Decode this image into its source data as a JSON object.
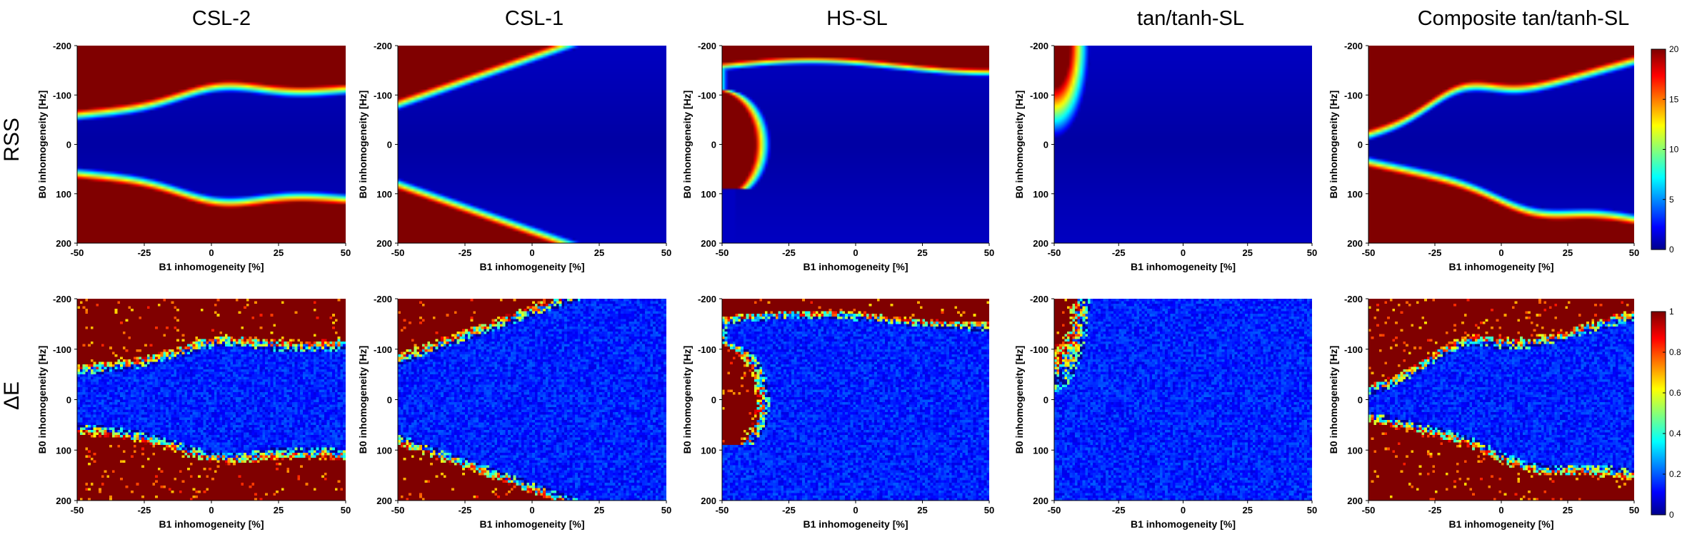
{
  "figure": {
    "columns": [
      "CSL-2",
      "CSL-1",
      "HS-SL",
      "tan/tanh-SL",
      "Composite tan/tanh-SL"
    ],
    "rows": [
      "RSS",
      "ΔE"
    ]
  },
  "colors": {
    "colormap": "jet",
    "stops": [
      "#00008f",
      "#0000ff",
      "#00ffff",
      "#ffff00",
      "#ff0000",
      "#800000"
    ]
  },
  "chart_data": [
    {
      "type": "heatmap",
      "row": "RSS",
      "title": "CSL-2",
      "xlabel": "B1 inhomogeneity [%]",
      "ylabel": "B0 inhomogeneity [Hz]",
      "xlim": [
        -50,
        50
      ],
      "ylim": [
        -200,
        200
      ],
      "xticks": [
        "-50",
        "-25",
        "0",
        "25",
        "50"
      ],
      "yticks": [
        "-200",
        "-100",
        "0",
        "100",
        "200"
      ],
      "clim": [
        0,
        20
      ],
      "model": "csl2",
      "noise": false
    },
    {
      "type": "heatmap",
      "row": "RSS",
      "title": "CSL-1",
      "xlabel": "B1 inhomogeneity [%]",
      "ylabel": "B0 inhomogeneity [Hz]",
      "xlim": [
        -50,
        50
      ],
      "ylim": [
        -200,
        200
      ],
      "xticks": [
        "-50",
        "-25",
        "0",
        "25",
        "50"
      ],
      "yticks": [
        "-200",
        "-100",
        "0",
        "100",
        "200"
      ],
      "clim": [
        0,
        20
      ],
      "model": "csl1",
      "noise": false
    },
    {
      "type": "heatmap",
      "row": "RSS",
      "title": "HS-SL",
      "xlabel": "B1 inhomogeneity [%]",
      "ylabel": "B0 inhomogeneity [Hz]",
      "xlim": [
        -50,
        50
      ],
      "ylim": [
        -200,
        200
      ],
      "xticks": [
        "-50",
        "-25",
        "0",
        "25",
        "50"
      ],
      "yticks": [
        "-200",
        "-100",
        "0",
        "100",
        "200"
      ],
      "clim": [
        0,
        20
      ],
      "model": "hssl",
      "noise": false
    },
    {
      "type": "heatmap",
      "row": "RSS",
      "title": "tan/tanh-SL",
      "xlabel": "B1 inhomogeneity [%]",
      "ylabel": "B0 inhomogeneity [Hz]",
      "xlim": [
        -50,
        50
      ],
      "ylim": [
        -200,
        200
      ],
      "xticks": [
        "-50",
        "-25",
        "0",
        "25",
        "50"
      ],
      "yticks": [
        "-200",
        "-100",
        "0",
        "100",
        "200"
      ],
      "clim": [
        0,
        20
      ],
      "model": "tan",
      "noise": false
    },
    {
      "type": "heatmap",
      "row": "RSS",
      "title": "Composite tan/tanh-SL",
      "xlabel": "B1 inhomogeneity [%]",
      "ylabel": "B0 inhomogeneity [Hz]",
      "xlim": [
        -50,
        50
      ],
      "ylim": [
        -200,
        200
      ],
      "xticks": [
        "-50",
        "-25",
        "0",
        "25",
        "50"
      ],
      "yticks": [
        "-200",
        "-100",
        "0",
        "100",
        "200"
      ],
      "clim": [
        0,
        20
      ],
      "model": "comp",
      "noise": false,
      "colorbar": {
        "ticks": [
          0,
          5,
          10,
          15,
          20
        ],
        "labels": [
          "0",
          "5",
          "10",
          "15",
          "20"
        ]
      }
    },
    {
      "type": "heatmap",
      "row": "ΔE",
      "title": "CSL-2",
      "xlabel": "B1 inhomogeneity [%]",
      "ylabel": "B0 inhomogeneity [Hz]",
      "xlim": [
        -50,
        50
      ],
      "ylim": [
        -200,
        200
      ],
      "xticks": [
        "-50",
        "-25",
        "0",
        "25",
        "50"
      ],
      "yticks": [
        "-200",
        "-100",
        "0",
        "100",
        "200"
      ],
      "clim": [
        0,
        1
      ],
      "model": "csl2",
      "noise": true
    },
    {
      "type": "heatmap",
      "row": "ΔE",
      "title": "CSL-1",
      "xlabel": "B1 inhomogeneity [%]",
      "ylabel": "B0 inhomogeneity [Hz]",
      "xlim": [
        -50,
        50
      ],
      "ylim": [
        -200,
        200
      ],
      "xticks": [
        "-50",
        "-25",
        "0",
        "25",
        "50"
      ],
      "yticks": [
        "-200",
        "-100",
        "0",
        "100",
        "200"
      ],
      "clim": [
        0,
        1
      ],
      "model": "csl1",
      "noise": true
    },
    {
      "type": "heatmap",
      "row": "ΔE",
      "title": "HS-SL",
      "xlabel": "B1 inhomogeneity [%]",
      "ylabel": "B0 inhomogeneity [Hz]",
      "xlim": [
        -50,
        50
      ],
      "ylim": [
        -200,
        200
      ],
      "xticks": [
        "-50",
        "-25",
        "0",
        "25",
        "50"
      ],
      "yticks": [
        "-200",
        "-100",
        "0",
        "100",
        "200"
      ],
      "clim": [
        0,
        1
      ],
      "model": "hssl",
      "noise": true
    },
    {
      "type": "heatmap",
      "row": "ΔE",
      "title": "tan/tanh-SL",
      "xlabel": "B1 inhomogeneity [%]",
      "ylabel": "B0 inhomogeneity [Hz]",
      "xlim": [
        -50,
        50
      ],
      "ylim": [
        -200,
        200
      ],
      "xticks": [
        "-50",
        "-25",
        "0",
        "25",
        "50"
      ],
      "yticks": [
        "-200",
        "-100",
        "0",
        "100",
        "200"
      ],
      "clim": [
        0,
        1
      ],
      "model": "tan",
      "noise": true
    },
    {
      "type": "heatmap",
      "row": "ΔE",
      "title": "Composite tan/tanh-SL",
      "xlabel": "B1 inhomogeneity [%]",
      "ylabel": "B0 inhomogeneity [Hz]",
      "xlim": [
        -50,
        50
      ],
      "ylim": [
        -200,
        200
      ],
      "xticks": [
        "-50",
        "-25",
        "0",
        "25",
        "50"
      ],
      "yticks": [
        "-200",
        "-100",
        "0",
        "100",
        "200"
      ],
      "clim": [
        0,
        1
      ],
      "model": "comp",
      "noise": true,
      "colorbar": {
        "ticks": [
          0,
          0.2,
          0.4,
          0.6,
          0.8,
          1
        ],
        "labels": [
          "0",
          "0.2",
          "0.4",
          "0.6",
          "0.8",
          "1"
        ]
      }
    }
  ]
}
